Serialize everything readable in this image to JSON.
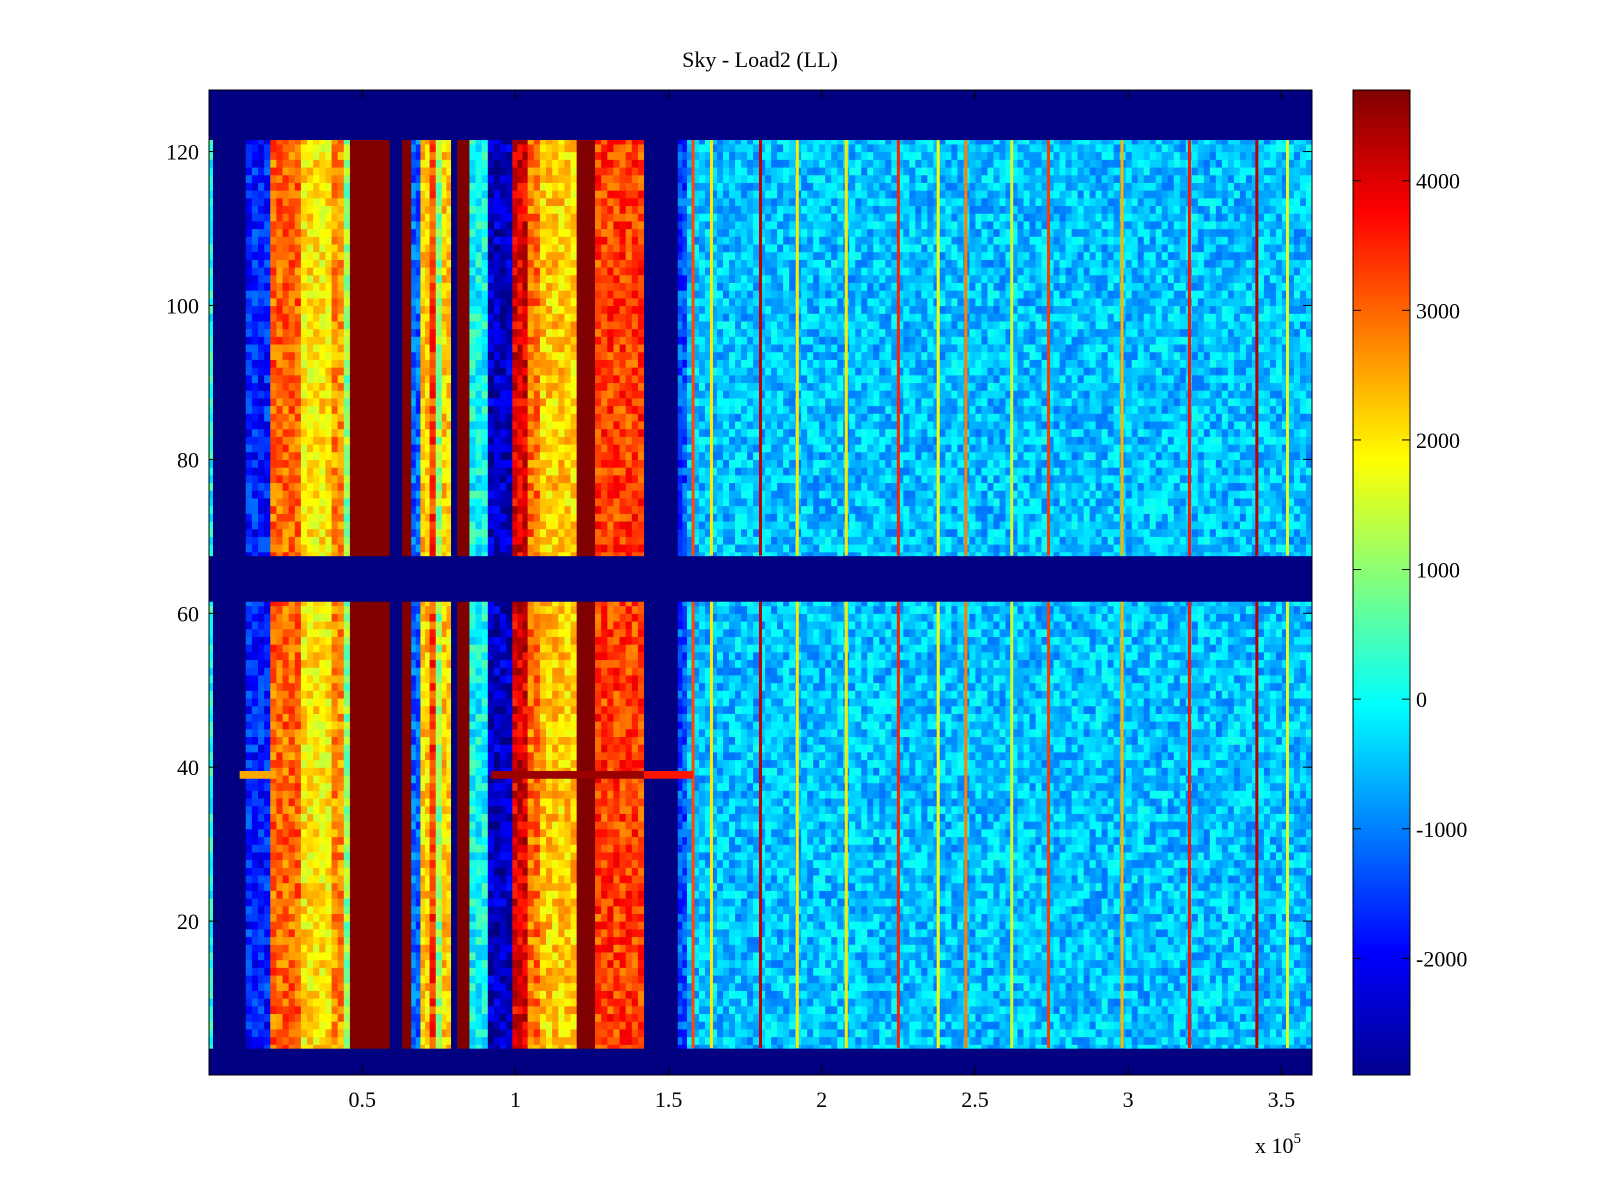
{
  "chart_data": {
    "type": "heatmap",
    "title": "Sky - Load2 (LL)",
    "xlabel": "",
    "ylabel": "",
    "x_multiplier_label": "x 10",
    "x_multiplier_exponent": "5",
    "xlim": [
      0,
      3.6
    ],
    "ylim": [
      0,
      128
    ],
    "xticks": [
      0.5,
      1,
      1.5,
      2,
      2.5,
      3,
      3.5
    ],
    "xtick_labels": [
      "0.5",
      "1",
      "1.5",
      "2",
      "2.5",
      "3",
      "3.5"
    ],
    "yticks": [
      20,
      40,
      60,
      80,
      100,
      120
    ],
    "ytick_labels": [
      "20",
      "40",
      "60",
      "80",
      "100",
      "120"
    ],
    "colorbar": {
      "colormap": "jet",
      "clim": [
        -2900,
        4700
      ],
      "ticks": [
        -2000,
        -1000,
        0,
        1000,
        2000,
        3000,
        4000
      ],
      "tick_labels": [
        "-2000",
        "-1000",
        "0",
        "1000",
        "2000",
        "3000",
        "4000"
      ]
    },
    "row_bands": [
      {
        "from": 0,
        "to": 3.5,
        "value": -2900
      },
      {
        "from": 3.5,
        "to": 61.5,
        "value": "data"
      },
      {
        "from": 61.5,
        "to": 67.5,
        "value": -2900
      },
      {
        "from": 67.5,
        "to": 121.5,
        "value": "data"
      },
      {
        "from": 121.5,
        "to": 128,
        "value": -2900
      }
    ],
    "column_segments": [
      {
        "x0": 0.0,
        "x1": 0.013,
        "value": 100
      },
      {
        "x0": 0.013,
        "x1": 0.12,
        "value": -2900
      },
      {
        "x0": 0.12,
        "x1": 0.2,
        "value": -1700
      },
      {
        "x0": 0.2,
        "x1": 0.3,
        "value": 3000
      },
      {
        "x0": 0.3,
        "x1": 0.4,
        "value": 2000
      },
      {
        "x0": 0.4,
        "x1": 0.44,
        "value": 2700
      },
      {
        "x0": 0.44,
        "x1": 0.46,
        "value": 1000
      },
      {
        "x0": 0.46,
        "x1": 0.59,
        "value": 4700
      },
      {
        "x0": 0.59,
        "x1": 0.63,
        "value": -2900
      },
      {
        "x0": 0.63,
        "x1": 0.66,
        "value": 4700
      },
      {
        "x0": 0.66,
        "x1": 0.69,
        "value": -1200
      },
      {
        "x0": 0.69,
        "x1": 0.72,
        "value": 2200
      },
      {
        "x0": 0.72,
        "x1": 0.74,
        "value": 3300
      },
      {
        "x0": 0.74,
        "x1": 0.76,
        "value": 1000
      },
      {
        "x0": 0.76,
        "x1": 0.79,
        "value": 2200
      },
      {
        "x0": 0.79,
        "x1": 0.81,
        "value": -2900
      },
      {
        "x0": 0.81,
        "x1": 0.85,
        "value": 4700
      },
      {
        "x0": 0.85,
        "x1": 0.91,
        "value": 0
      },
      {
        "x0": 0.91,
        "x1": 0.99,
        "value": -2400
      },
      {
        "x0": 0.99,
        "x1": 1.04,
        "value": 4000
      },
      {
        "x0": 1.04,
        "x1": 1.08,
        "value": 2900
      },
      {
        "x0": 1.08,
        "x1": 1.2,
        "value": 2200
      },
      {
        "x0": 1.2,
        "x1": 1.26,
        "value": 4700
      },
      {
        "x0": 1.26,
        "x1": 1.42,
        "value": 3300
      },
      {
        "x0": 1.42,
        "x1": 1.53,
        "value": -2900
      },
      {
        "x0": 1.53,
        "x1": 1.56,
        "value": -1400
      },
      {
        "x0": 1.56,
        "x1": 3.6,
        "value": -500
      }
    ],
    "vertical_lines": [
      {
        "x": 1.58,
        "value": 3200
      },
      {
        "x": 1.64,
        "value": 2000
      },
      {
        "x": 1.8,
        "value": 4200
      },
      {
        "x": 1.92,
        "value": 2000
      },
      {
        "x": 2.08,
        "value": 2000
      },
      {
        "x": 2.25,
        "value": 3500
      },
      {
        "x": 2.38,
        "value": 1800
      },
      {
        "x": 2.47,
        "value": 2800
      },
      {
        "x": 2.62,
        "value": 1500
      },
      {
        "x": 2.74,
        "value": 3300
      },
      {
        "x": 2.98,
        "value": 2400
      },
      {
        "x": 3.2,
        "value": 3600
      },
      {
        "x": 3.42,
        "value": 4300
      },
      {
        "x": 3.52,
        "value": 1600
      }
    ],
    "row_highlights": [
      {
        "y": 39,
        "x0": 0.1,
        "x1": 0.22,
        "value": 2500
      },
      {
        "y": 39,
        "x0": 0.92,
        "x1": 1.42,
        "value": 4500
      },
      {
        "y": 39,
        "x0": 1.42,
        "x1": 1.58,
        "value": 3600
      }
    ]
  }
}
